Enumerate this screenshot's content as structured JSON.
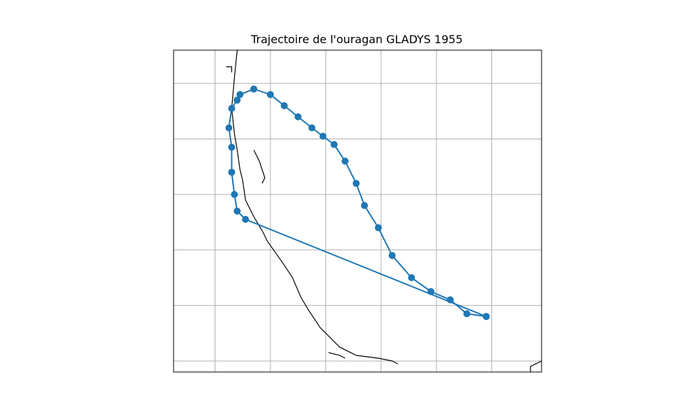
{
  "title": "Trajectoire de l'ouragan GLADYS 1955",
  "colors": {
    "track": "#1f77b4",
    "grid": "#b0b0b0",
    "coastline": "#000000",
    "frame": "#000000"
  },
  "chart_data": {
    "type": "map",
    "title": "Trajectoire de l'ouragan GLADYS 1955",
    "projection": "plate-carree",
    "grid": true,
    "axis_tick_labels": false,
    "map_extent": {
      "lon": [
        -101.5,
        -88.2
      ],
      "lat": [
        15.6,
        27.2
      ]
    },
    "gridlines": {
      "lon": [
        -100,
        -98,
        -96,
        -94,
        -92,
        -90
      ],
      "lat": [
        16,
        18,
        20,
        22,
        24,
        26
      ]
    },
    "series": [
      {
        "type": "line-with-markers",
        "points": [
          {
            "lon": -90.2,
            "lat": 17.6
          },
          {
            "lon": -98.9,
            "lat": 21.1
          },
          {
            "lon": -99.2,
            "lat": 21.4
          },
          {
            "lon": -99.3,
            "lat": 22.0
          },
          {
            "lon": -99.4,
            "lat": 22.8
          },
          {
            "lon": -99.4,
            "lat": 23.7
          },
          {
            "lon": -99.5,
            "lat": 24.4
          },
          {
            "lon": -99.4,
            "lat": 25.1
          },
          {
            "lon": -99.2,
            "lat": 25.4
          },
          {
            "lon": -99.1,
            "lat": 25.6
          },
          {
            "lon": -98.6,
            "lat": 25.8
          },
          {
            "lon": -98.0,
            "lat": 25.6
          },
          {
            "lon": -97.5,
            "lat": 25.2
          },
          {
            "lon": -97.0,
            "lat": 24.8
          },
          {
            "lon": -96.5,
            "lat": 24.4
          },
          {
            "lon": -96.1,
            "lat": 24.1
          },
          {
            "lon": -95.7,
            "lat": 23.8
          },
          {
            "lon": -95.3,
            "lat": 23.2
          },
          {
            "lon": -94.9,
            "lat": 22.4
          },
          {
            "lon": -94.6,
            "lat": 21.6
          },
          {
            "lon": -94.1,
            "lat": 20.8
          },
          {
            "lon": -93.6,
            "lat": 19.8
          },
          {
            "lon": -92.9,
            "lat": 19.0
          },
          {
            "lon": -92.2,
            "lat": 18.5
          },
          {
            "lon": -91.5,
            "lat": 18.2
          },
          {
            "lon": -90.9,
            "lat": 17.7
          },
          {
            "lon": -90.2,
            "lat": 17.6
          }
        ]
      }
    ],
    "coastlines": [
      [
        {
          "lon": -99.2,
          "lat": 27.2
        },
        {
          "lon": -99.3,
          "lat": 26.2
        },
        {
          "lon": -99.4,
          "lat": 25.1
        },
        {
          "lon": -99.3,
          "lat": 24.2
        },
        {
          "lon": -99.2,
          "lat": 23.6
        },
        {
          "lon": -99.1,
          "lat": 22.9
        },
        {
          "lon": -99.0,
          "lat": 22.5
        },
        {
          "lon": -98.9,
          "lat": 21.8
        },
        {
          "lon": -98.6,
          "lat": 21.2
        },
        {
          "lon": -98.3,
          "lat": 20.7
        },
        {
          "lon": -98.1,
          "lat": 20.3
        },
        {
          "lon": -97.6,
          "lat": 19.6
        },
        {
          "lon": -97.2,
          "lat": 19.0
        },
        {
          "lon": -96.9,
          "lat": 18.3
        },
        {
          "lon": -96.6,
          "lat": 17.8
        },
        {
          "lon": -96.2,
          "lat": 17.2
        },
        {
          "lon": -95.8,
          "lat": 16.8
        },
        {
          "lon": -95.5,
          "lat": 16.5
        },
        {
          "lon": -94.9,
          "lat": 16.2
        },
        {
          "lon": -94.1,
          "lat": 16.1
        },
        {
          "lon": -93.6,
          "lat": 16.0
        },
        {
          "lon": -93.4,
          "lat": 15.9
        }
      ],
      [
        {
          "lon": -98.6,
          "lat": 23.6
        },
        {
          "lon": -98.4,
          "lat": 23.2
        },
        {
          "lon": -98.3,
          "lat": 22.9
        },
        {
          "lon": -98.2,
          "lat": 22.6
        },
        {
          "lon": -98.3,
          "lat": 22.4
        }
      ],
      [
        {
          "lon": -99.6,
          "lat": 26.6
        },
        {
          "lon": -99.4,
          "lat": 26.6
        },
        {
          "lon": -99.4,
          "lat": 26.4
        }
      ],
      [
        {
          "lon": -95.9,
          "lat": 16.3
        },
        {
          "lon": -95.5,
          "lat": 16.2
        },
        {
          "lon": -95.3,
          "lat": 16.1
        }
      ],
      [
        {
          "lon": -88.6,
          "lat": 15.6
        },
        {
          "lon": -88.6,
          "lat": 15.8
        },
        {
          "lon": -88.4,
          "lat": 15.9
        },
        {
          "lon": -88.2,
          "lat": 16.0
        }
      ]
    ]
  }
}
